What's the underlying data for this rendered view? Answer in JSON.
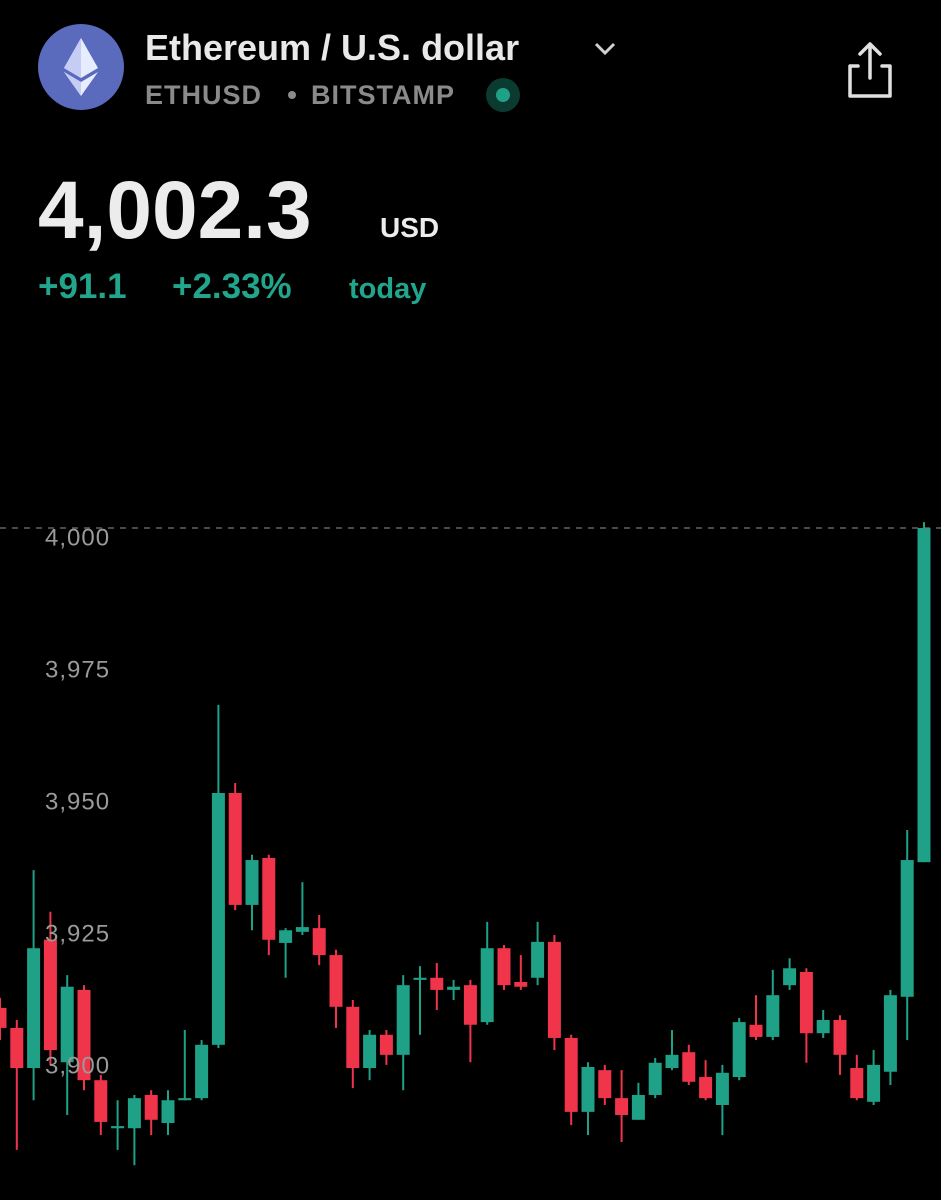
{
  "header": {
    "title": "Ethereum / U.S. dollar",
    "symbol": "ETHUSD",
    "exchange": "BITSTAMP",
    "price": "4,002.3",
    "currency": "USD",
    "change": "+91.1",
    "change_percent": "+2.33%",
    "period": "today"
  },
  "chart_data": {
    "type": "candlestick",
    "up_color": "#1fa187",
    "down_color": "#f0354a",
    "ylim": [
      3876.7,
      4007.4
    ],
    "yticks": [
      {
        "value": 4000,
        "label": "4,000"
      },
      {
        "value": 3975,
        "label": "3,975"
      },
      {
        "value": 3950,
        "label": "3,950"
      },
      {
        "value": 3925,
        "label": "3,925"
      },
      {
        "value": 3900,
        "label": "3,900"
      }
    ],
    "open": [
      3911.2,
      3907.4,
      3899.8,
      3924.1,
      3900.9,
      3914.6,
      3897.5,
      3888.4,
      3888.4,
      3894.7,
      3889.4,
      3893.7,
      3894.1,
      3904.2,
      3951.9,
      3930.7,
      3939.6,
      3923.5,
      3925.6,
      3926.3,
      3921.2,
      3911.4,
      3899.8,
      3906.1,
      3902.3,
      3916.5,
      3916.9,
      3914.6,
      3915.5,
      3908.5,
      3922.5,
      3916.1,
      3916.9,
      3923.7,
      3905.5,
      3891.5,
      3899.4,
      3894.1,
      3890.0,
      3894.7,
      3899.8,
      3902.8,
      3898.1,
      3892.8,
      3898.1,
      3908.0,
      3905.7,
      3915.5,
      3918.0,
      3906.4,
      3908.9,
      3899.8,
      3893.4,
      3899.1,
      3913.3,
      3938.8
    ],
    "high": [
      3913.1,
      3908.9,
      3937.3,
      3929.4,
      3917.4,
      3915.5,
      3898.5,
      3893.7,
      3894.7,
      3895.6,
      3895.6,
      3907.0,
      3905.1,
      3968.6,
      3953.8,
      3940.2,
      3940.2,
      3926.3,
      3935.0,
      3928.8,
      3922.2,
      3912.7,
      3907.0,
      3907.0,
      3917.4,
      3919.1,
      3919.7,
      3916.5,
      3916.5,
      3927.5,
      3923.1,
      3921.2,
      3927.5,
      3925.0,
      3906.1,
      3900.9,
      3900.4,
      3899.4,
      3897.0,
      3901.7,
      3907.0,
      3904.2,
      3901.3,
      3900.4,
      3909.3,
      3913.6,
      3918.4,
      3920.6,
      3918.7,
      3910.8,
      3909.8,
      3902.3,
      3903.2,
      3914.6,
      3944.9,
      4003.2
    ],
    "low": [
      3905.1,
      3884.3,
      3893.7,
      3900.4,
      3890.9,
      3895.6,
      3887.1,
      3884.3,
      3881.4,
      3887.1,
      3887.1,
      3893.7,
      3893.7,
      3903.6,
      3929.7,
      3925.9,
      3921.2,
      3916.9,
      3925.0,
      3919.3,
      3907.4,
      3896.0,
      3897.5,
      3900.4,
      3895.6,
      3906.1,
      3910.8,
      3912.7,
      3900.9,
      3908.0,
      3914.6,
      3914.6,
      3915.5,
      3903.2,
      3889.0,
      3887.1,
      3892.8,
      3885.8,
      3890.0,
      3894.1,
      3899.4,
      3896.6,
      3893.7,
      3887.1,
      3897.5,
      3905.1,
      3905.1,
      3914.6,
      3900.8,
      3905.5,
      3898.5,
      3893.7,
      3892.8,
      3896.6,
      3905.1,
      3938.8
    ],
    "close": [
      3907.4,
      3899.8,
      3922.5,
      3903.2,
      3915.2,
      3897.5,
      3889.6,
      3888.8,
      3894.1,
      3890.0,
      3893.7,
      3894.1,
      3904.2,
      3951.9,
      3930.7,
      3939.2,
      3924.1,
      3925.9,
      3926.5,
      3921.2,
      3911.4,
      3899.8,
      3906.1,
      3902.3,
      3915.5,
      3916.9,
      3914.6,
      3915.2,
      3908.0,
      3922.5,
      3915.5,
      3915.2,
      3923.7,
      3905.5,
      3891.5,
      3900.0,
      3894.1,
      3890.9,
      3894.7,
      3900.8,
      3902.3,
      3897.2,
      3894.1,
      3898.9,
      3908.5,
      3905.7,
      3913.6,
      3918.7,
      3906.4,
      3908.9,
      3902.3,
      3894.1,
      3900.4,
      3913.6,
      3939.2,
      4002.1
    ]
  }
}
